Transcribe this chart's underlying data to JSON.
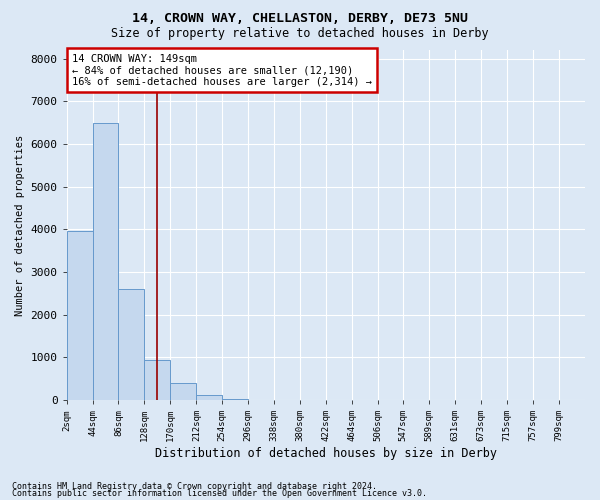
{
  "title1": "14, CROWN WAY, CHELLASTON, DERBY, DE73 5NU",
  "title2": "Size of property relative to detached houses in Derby",
  "xlabel": "Distribution of detached houses by size in Derby",
  "ylabel": "Number of detached properties",
  "footnote1": "Contains HM Land Registry data © Crown copyright and database right 2024.",
  "footnote2": "Contains public sector information licensed under the Open Government Licence v3.0.",
  "annotation_line1": "14 CROWN WAY: 149sqm",
  "annotation_line2": "← 84% of detached houses are smaller (12,190)",
  "annotation_line3": "16% of semi-detached houses are larger (2,314) →",
  "property_size": 149,
  "bar_edges": [
    2,
    44,
    86,
    128,
    170,
    212,
    254,
    296,
    338,
    380,
    422,
    464,
    506,
    547,
    589,
    631,
    673,
    715,
    757,
    799,
    841
  ],
  "bar_heights": [
    3950,
    6500,
    2600,
    950,
    400,
    130,
    30,
    5,
    0,
    0,
    0,
    0,
    0,
    0,
    0,
    0,
    0,
    0,
    0,
    0
  ],
  "bar_color": "#c5d8ee",
  "bar_edge_color": "#6699cc",
  "vline_color": "#990000",
  "bg_color": "#dce8f5",
  "grid_color": "#ffffff",
  "annotation_box_edge": "#cc0000",
  "ylim": [
    0,
    8200
  ],
  "yticks": [
    0,
    1000,
    2000,
    3000,
    4000,
    5000,
    6000,
    7000,
    8000
  ]
}
